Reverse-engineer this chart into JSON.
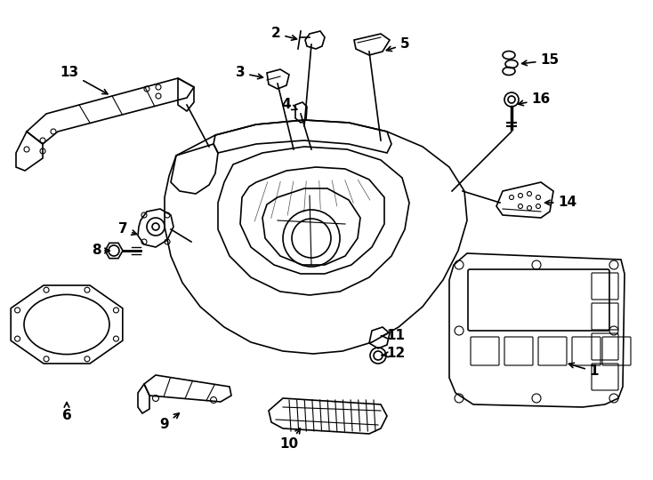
{
  "background_color": "#ffffff",
  "line_color": "#000000",
  "label_fontsize": 11,
  "label_fontweight": "bold",
  "labels": [
    [
      1,
      668,
      418,
      635,
      408
    ],
    [
      2,
      310,
      38,
      338,
      45
    ],
    [
      3,
      270,
      82,
      300,
      88
    ],
    [
      4,
      322,
      118,
      338,
      125
    ],
    [
      5,
      455,
      50,
      430,
      58
    ],
    [
      6,
      75,
      468,
      75,
      448
    ],
    [
      7,
      138,
      258,
      158,
      265
    ],
    [
      8,
      108,
      282,
      128,
      282
    ],
    [
      9,
      185,
      478,
      205,
      462
    ],
    [
      10,
      325,
      500,
      340,
      478
    ],
    [
      11,
      445,
      378,
      428,
      378
    ],
    [
      12,
      445,
      398,
      426,
      400
    ],
    [
      13,
      78,
      82,
      125,
      108
    ],
    [
      14,
      638,
      228,
      608,
      228
    ],
    [
      15,
      618,
      68,
      582,
      72
    ],
    [
      16,
      608,
      112,
      578,
      118
    ]
  ]
}
